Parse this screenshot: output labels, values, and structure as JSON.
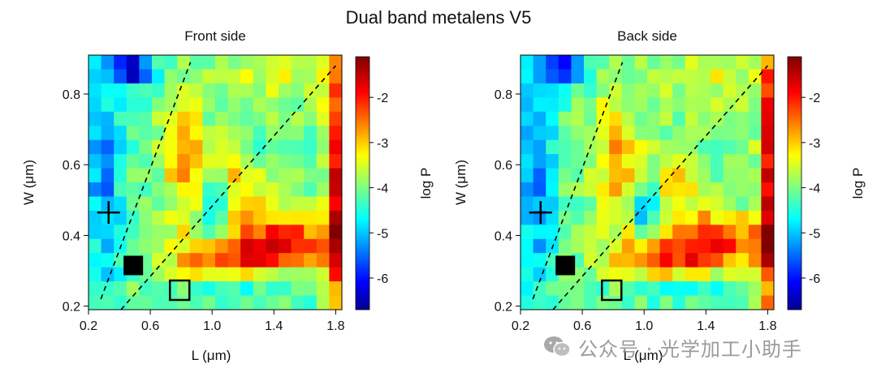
{
  "chart_data": {
    "title": "Dual band metalens V5",
    "type": "heatmap",
    "panels": [
      {
        "title": "Front side",
        "xlabel": "L (μm)",
        "ylabel": "W (μm)",
        "colorbar_label": "log P",
        "xlim": [
          0.2,
          1.84
        ],
        "ylim": [
          0.19,
          0.91
        ],
        "xticks": [
          "0.2",
          "0.6",
          "1.0",
          "1.4",
          "1.8"
        ],
        "yticks": [
          "0.2",
          "0.4",
          "0.6",
          "0.8"
        ],
        "colorbar_ticks": [
          "-2",
          "-3",
          "-4",
          "-5",
          "-6"
        ],
        "clim": [
          -6.7,
          -1.1
        ],
        "grid": {
          "nx": 20,
          "ny": 18
        },
        "lines": [
          {
            "from": [
              0.28,
              0.22
            ],
            "to": [
              0.86,
              0.89
            ],
            "style": "dashed"
          },
          {
            "from": [
              0.41,
              0.19
            ],
            "to": [
              1.8,
              0.88
            ],
            "style": "dashed"
          }
        ],
        "markers": [
          {
            "symbol": "plus",
            "x": 0.33,
            "y": 0.465
          },
          {
            "symbol": "filled-square",
            "x": 0.49,
            "y": 0.315
          },
          {
            "symbol": "open-square",
            "x": 0.79,
            "y": 0.245
          }
        ],
        "seed": 11
      },
      {
        "title": "Back side",
        "xlabel": "L (μm)",
        "ylabel": "W (μm)",
        "colorbar_label": "log P",
        "xlim": [
          0.2,
          1.84
        ],
        "ylim": [
          0.19,
          0.91
        ],
        "xticks": [
          "0.2",
          "0.6",
          "1.0",
          "1.4",
          "1.8"
        ],
        "yticks": [
          "0.2",
          "0.4",
          "0.6",
          "0.8"
        ],
        "colorbar_ticks": [
          "-2",
          "-3",
          "-4",
          "-5",
          "-6"
        ],
        "clim": [
          -6.7,
          -1.1
        ],
        "grid": {
          "nx": 20,
          "ny": 18
        },
        "lines": [
          {
            "from": [
              0.28,
              0.22
            ],
            "to": [
              0.86,
              0.89
            ],
            "style": "dashed"
          },
          {
            "from": [
              0.41,
              0.19
            ],
            "to": [
              1.8,
              0.88
            ],
            "style": "dashed"
          }
        ],
        "markers": [
          {
            "symbol": "plus",
            "x": 0.33,
            "y": 0.465
          },
          {
            "symbol": "filled-square",
            "x": 0.49,
            "y": 0.315
          },
          {
            "symbol": "open-square",
            "x": 0.79,
            "y": 0.245
          }
        ],
        "seed": 23
      }
    ]
  },
  "watermark": {
    "text": "公众号 · 光学加工小助手",
    "icon": "wechat-icon"
  },
  "colors": {
    "colormap": [
      "#00008f",
      "#0000ff",
      "#00ffff",
      "#ffff00",
      "#ff0000",
      "#800000"
    ],
    "lines": "#000000",
    "watermark": "#8a8a8a"
  }
}
